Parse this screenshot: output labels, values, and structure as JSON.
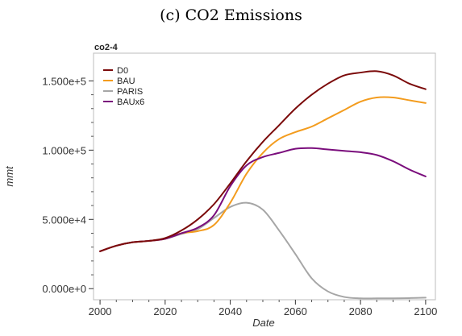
{
  "caption": "(c) CO2 Emissions",
  "chart_data": {
    "type": "line",
    "title": "co2-4",
    "xlabel": "Date",
    "ylabel": "mmt",
    "xlim": [
      1998,
      2103
    ],
    "ylim": [
      -8000,
      170000
    ],
    "x_ticks": [
      2000,
      2020,
      2040,
      2060,
      2080,
      2100
    ],
    "x_tick_labels": [
      "2000",
      "2020",
      "2040",
      "2060",
      "2080",
      "2100"
    ],
    "y_ticks": [
      0,
      50000,
      100000,
      150000
    ],
    "y_tick_labels": [
      "0.000e+0",
      "5.000e+4",
      "1.000e+5",
      "1.500e+5"
    ],
    "grid": false,
    "legend_position": "top-left",
    "series": [
      {
        "name": "D0",
        "color": "#7b0a0a",
        "x": [
          2000,
          2005,
          2010,
          2015,
          2020,
          2025,
          2030,
          2035,
          2040,
          2045,
          2050,
          2055,
          2060,
          2065,
          2070,
          2075,
          2080,
          2085,
          2090,
          2095,
          2100
        ],
        "y": [
          27000,
          31000,
          33500,
          34500,
          36500,
          42000,
          50000,
          61000,
          76000,
          92000,
          106000,
          118000,
          130000,
          140000,
          148000,
          154000,
          156000,
          157000,
          154000,
          148000,
          144000
        ]
      },
      {
        "name": "BAU",
        "color": "#f39c1e",
        "x": [
          2000,
          2005,
          2010,
          2015,
          2020,
          2025,
          2030,
          2035,
          2040,
          2045,
          2050,
          2055,
          2060,
          2065,
          2070,
          2075,
          2080,
          2085,
          2090,
          2095,
          2100
        ],
        "y": [
          27000,
          31000,
          33500,
          34500,
          36000,
          40000,
          41500,
          46000,
          62000,
          83000,
          98000,
          108000,
          113000,
          117000,
          123000,
          129000,
          135000,
          138000,
          138000,
          136000,
          134000
        ]
      },
      {
        "name": "PARIS",
        "color": "#a6a6a6",
        "x": [
          2000,
          2005,
          2010,
          2015,
          2020,
          2025,
          2030,
          2035,
          2040,
          2045,
          2050,
          2055,
          2060,
          2065,
          2070,
          2075,
          2080,
          2085,
          2090,
          2095,
          2100
        ],
        "y": [
          27000,
          31000,
          33500,
          34500,
          36000,
          39500,
          43000,
          51000,
          59000,
          62000,
          57000,
          42000,
          25000,
          7500,
          -2000,
          -6000,
          -7000,
          -7000,
          -7000,
          -6800,
          -6500
        ]
      },
      {
        "name": "BAUx6",
        "color": "#7a0d7c",
        "x": [
          2000,
          2005,
          2010,
          2015,
          2020,
          2025,
          2030,
          2035,
          2040,
          2045,
          2050,
          2055,
          2060,
          2065,
          2070,
          2075,
          2080,
          2085,
          2090,
          2095,
          2100
        ],
        "y": [
          27000,
          31000,
          33500,
          34500,
          36000,
          40000,
          44000,
          53000,
          74000,
          89000,
          95000,
          98000,
          101000,
          101500,
          100500,
          99500,
          98500,
          96500,
          92000,
          86000,
          81000
        ]
      }
    ]
  }
}
